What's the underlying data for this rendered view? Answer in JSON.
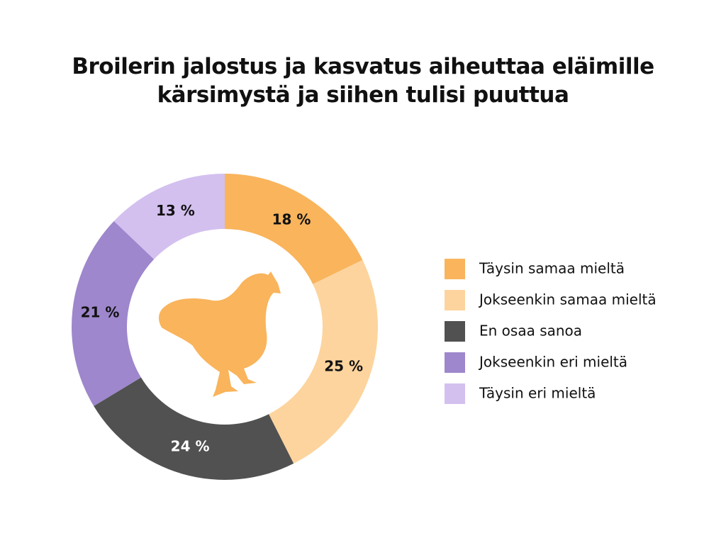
{
  "chart_data": {
    "type": "donut",
    "title": "Broilerin jalostus ja kasvatus aiheuttaa eläimille\nkärsimystä ja siihen tulisi puuttua",
    "categories": [
      "Täysin samaa mieltä",
      "Jokseenkin samaa mieltä",
      "En osaa sanoa",
      "Jokseenkin eri mieltä",
      "Täysin eri mieltä"
    ],
    "values": [
      18,
      25,
      24,
      21,
      13
    ],
    "value_labels": [
      "18 %",
      "25 %",
      "24 %",
      "21 %",
      "13 %"
    ],
    "colors": [
      "#f9b45c",
      "#fdd49e",
      "#505150",
      "#9e87cc",
      "#d3c0ef"
    ],
    "label_colors": [
      "#111111",
      "#111111",
      "#ffffff",
      "#111111",
      "#111111"
    ],
    "legend": "right"
  }
}
